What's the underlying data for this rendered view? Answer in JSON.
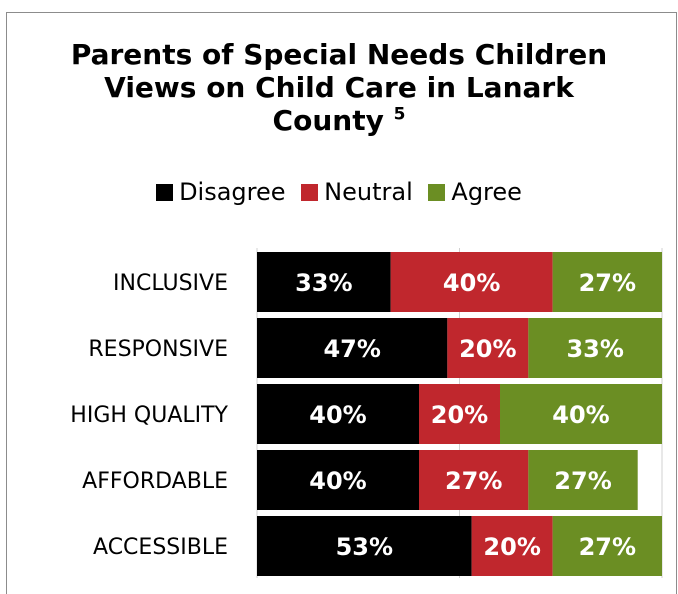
{
  "chart_data": {
    "type": "bar",
    "orientation": "horizontal",
    "stacked": true,
    "title_line1": "Parents of Special Needs Children",
    "title_line2": "Views on Child Care in Lanark",
    "title_line3": "County",
    "title_superscript": "5",
    "categories": [
      "INCLUSIVE",
      "RESPONSIVE",
      "HIGH QUALITY",
      "AFFORDABLE",
      "ACCESSIBLE"
    ],
    "series": [
      {
        "name": "Disagree",
        "color": "#000000",
        "values": [
          33,
          47,
          40,
          40,
          53
        ]
      },
      {
        "name": "Neutral",
        "color": "#c0272d",
        "values": [
          40,
          20,
          20,
          27,
          20
        ]
      },
      {
        "name": "Agree",
        "color": "#6b8e23",
        "values": [
          27,
          33,
          40,
          27,
          27
        ]
      }
    ],
    "value_suffix": "%",
    "xlim": [
      0,
      100
    ],
    "legend_position": "top",
    "grid": "vertical gridlines"
  }
}
